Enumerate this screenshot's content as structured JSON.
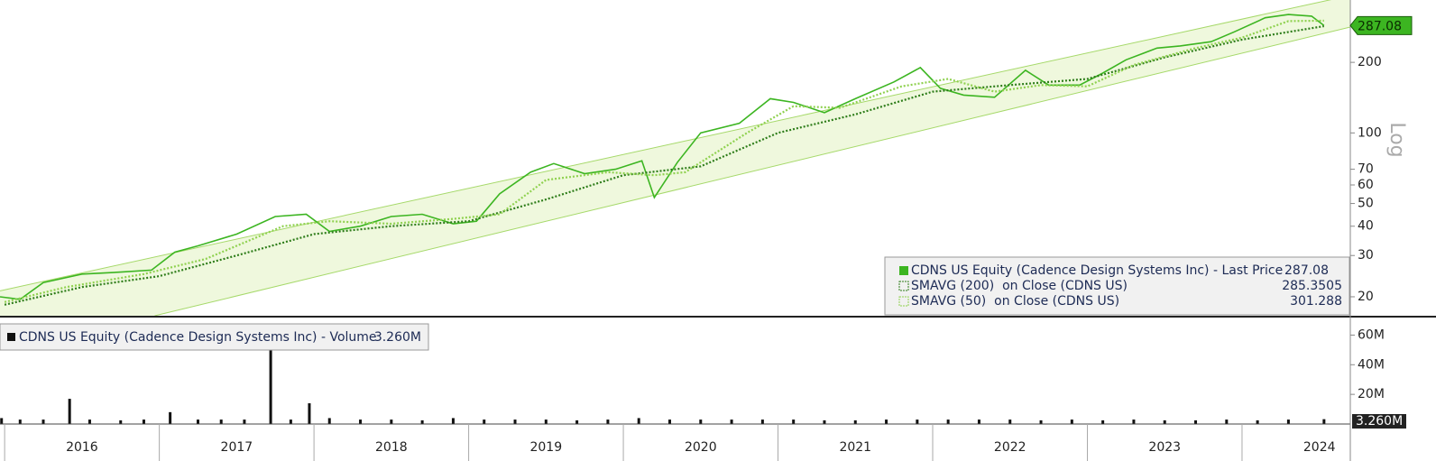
{
  "chart_data": [
    {
      "type": "line",
      "log_scale": true,
      "scale_label": "Log",
      "xlim": [
        2015.97,
        2024.7
      ],
      "xticks": [
        2016,
        2017,
        2018,
        2019,
        2020,
        2021,
        2022,
        2023,
        2024
      ],
      "ylim": [
        16.6,
        369
      ],
      "yticks": [
        20,
        30,
        40,
        50,
        60,
        70,
        100,
        200
      ],
      "channel": {
        "color": "#a6d96a",
        "fill": "#eff8dd",
        "upper": {
          "x": [
            2015.97,
            2024.7
          ],
          "values": [
            21.2,
            386
          ]
        },
        "lower": {
          "x": [
            2016.97,
            2024.7
          ],
          "values": [
            16.6,
            283
          ]
        }
      },
      "series": [
        {
          "name": "CDNS US Equity (Cadence Design Systems Inc) - Last Price",
          "color": "#3cb521",
          "x": [
            2015.97,
            2016.1,
            2016.25,
            2016.5,
            2016.75,
            2016.95,
            2017.1,
            2017.25,
            2017.5,
            2017.75,
            2017.95,
            2018.1,
            2018.3,
            2018.5,
            2018.7,
            2018.9,
            2019.05,
            2019.2,
            2019.4,
            2019.55,
            2019.75,
            2019.95,
            2020.12,
            2020.2,
            2020.35,
            2020.5,
            2020.75,
            2020.95,
            2021.1,
            2021.3,
            2021.5,
            2021.75,
            2021.92,
            2022.05,
            2022.2,
            2022.4,
            2022.6,
            2022.75,
            2022.95,
            2023.1,
            2023.25,
            2023.45,
            2023.6,
            2023.8,
            2023.95,
            2024.15,
            2024.3,
            2024.45,
            2024.53
          ],
          "values": [
            20,
            19.5,
            23,
            25,
            25.5,
            26,
            31,
            33,
            37,
            44,
            45,
            38,
            40,
            44,
            45,
            41,
            42,
            55,
            68,
            74,
            67,
            70,
            76,
            53,
            75,
            100,
            110,
            140,
            135,
            122,
            140,
            165,
            190,
            155,
            145,
            142,
            185,
            160,
            160,
            180,
            205,
            230,
            235,
            245,
            270,
            310,
            320,
            315,
            287.08
          ]
        },
        {
          "name": "SMAVG (200)  on Close (CDNS US)",
          "color": "#2e7d1a",
          "x": [
            2016.0,
            2016.5,
            2017.0,
            2017.5,
            2018.0,
            2018.5,
            2019.0,
            2019.5,
            2020.0,
            2020.5,
            2021.0,
            2021.5,
            2022.0,
            2022.5,
            2023.0,
            2023.5,
            2024.0,
            2024.53
          ],
          "values": [
            18.5,
            22,
            24.5,
            30,
            37,
            40,
            42,
            52,
            66,
            72,
            100,
            120,
            150,
            160,
            170,
            210,
            250,
            285.3505
          ]
        },
        {
          "name": "SMAVG (50)  on Close (CDNS US)",
          "color": "#8fd14f",
          "x": [
            2016.0,
            2016.4,
            2016.9,
            2017.3,
            2017.8,
            2018.1,
            2018.5,
            2018.9,
            2019.2,
            2019.5,
            2019.9,
            2020.2,
            2020.4,
            2020.8,
            2021.1,
            2021.4,
            2021.8,
            2022.1,
            2022.4,
            2022.7,
            2023.0,
            2023.3,
            2023.7,
            2024.0,
            2024.3,
            2024.53
          ],
          "values": [
            19,
            22,
            25,
            29,
            40,
            42,
            41,
            43,
            45,
            63,
            68,
            66,
            68,
            100,
            130,
            128,
            158,
            170,
            150,
            160,
            158,
            195,
            230,
            255,
            300,
            301.288
          ]
        }
      ]
    },
    {
      "type": "bar",
      "xlim": [
        2015.97,
        2024.7
      ],
      "ylim": [
        0,
        70000000
      ],
      "yticks": [
        {
          "value": 20000000,
          "label": "20M"
        },
        {
          "value": 40000000,
          "label": "40M"
        },
        {
          "value": 60000000,
          "label": "60M"
        }
      ],
      "series": [
        {
          "name": "CDNS US Equity (Cadence Design Systems Inc) - Volume",
          "color": "#111111",
          "last_value_label": "3.260M",
          "x": [
            2015.98,
            2016.1,
            2016.25,
            2016.42,
            2016.55,
            2016.75,
            2016.9,
            2017.07,
            2017.25,
            2017.4,
            2017.55,
            2017.72,
            2017.85,
            2017.97,
            2018.1,
            2018.3,
            2018.5,
            2018.7,
            2018.9,
            2019.1,
            2019.3,
            2019.5,
            2019.7,
            2019.9,
            2020.1,
            2020.3,
            2020.5,
            2020.7,
            2020.9,
            2021.1,
            2021.3,
            2021.5,
            2021.7,
            2021.9,
            2022.1,
            2022.3,
            2022.5,
            2022.7,
            2022.9,
            2023.1,
            2023.3,
            2023.5,
            2023.7,
            2023.9,
            2024.1,
            2024.3,
            2024.53
          ],
          "values": [
            4000000,
            3000000,
            3000000,
            17000000,
            3000000,
            2500000,
            3000000,
            8000000,
            3000000,
            3000000,
            3000000,
            55000000,
            3000000,
            14000000,
            4000000,
            3000000,
            3000000,
            2500000,
            4000000,
            3000000,
            3000000,
            3000000,
            2500000,
            3000000,
            4000000,
            3000000,
            3000000,
            3000000,
            3000000,
            3000000,
            2500000,
            2500000,
            3000000,
            3000000,
            3000000,
            3000000,
            3000000,
            2500000,
            3000000,
            2500000,
            3000000,
            2500000,
            2500000,
            3000000,
            2500000,
            3000000,
            3260000
          ]
        }
      ]
    }
  ]
}
